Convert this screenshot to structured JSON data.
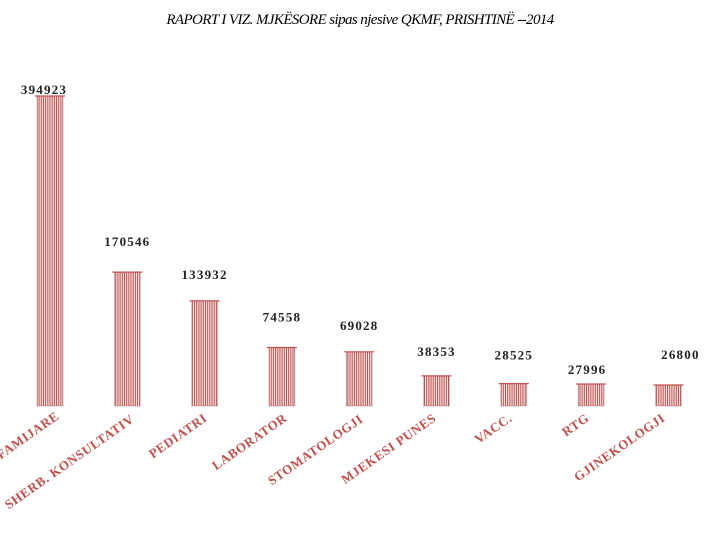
{
  "chart_data": {
    "type": "bar",
    "title": "RAPORT I VIZ. MJKËSORE  sipas njesive QKMF, PRISHTINË --2014",
    "categories": [
      "FAMIJARE",
      "SHERB. KONSULTATIV",
      "PEDIATRI",
      "LABORATOR",
      "STOMATOLOGJI",
      "MJEKESI PUNES",
      "VACC.",
      "RTG",
      "GJINEKOLOGJI"
    ],
    "series": [
      {
        "values": [
          394923,
          170546,
          133932,
          74558,
          69028,
          38353,
          28525,
          27996,
          26800
        ]
      }
    ],
    "ylim": [
      0,
      400000
    ],
    "xlabel": "",
    "ylabel": "",
    "grid": false,
    "colors": {
      "bar_stripe": "#c0504d",
      "bar_edge": "#a8a8a8",
      "category_label": "#c0504d",
      "value_label": "#222222"
    }
  }
}
